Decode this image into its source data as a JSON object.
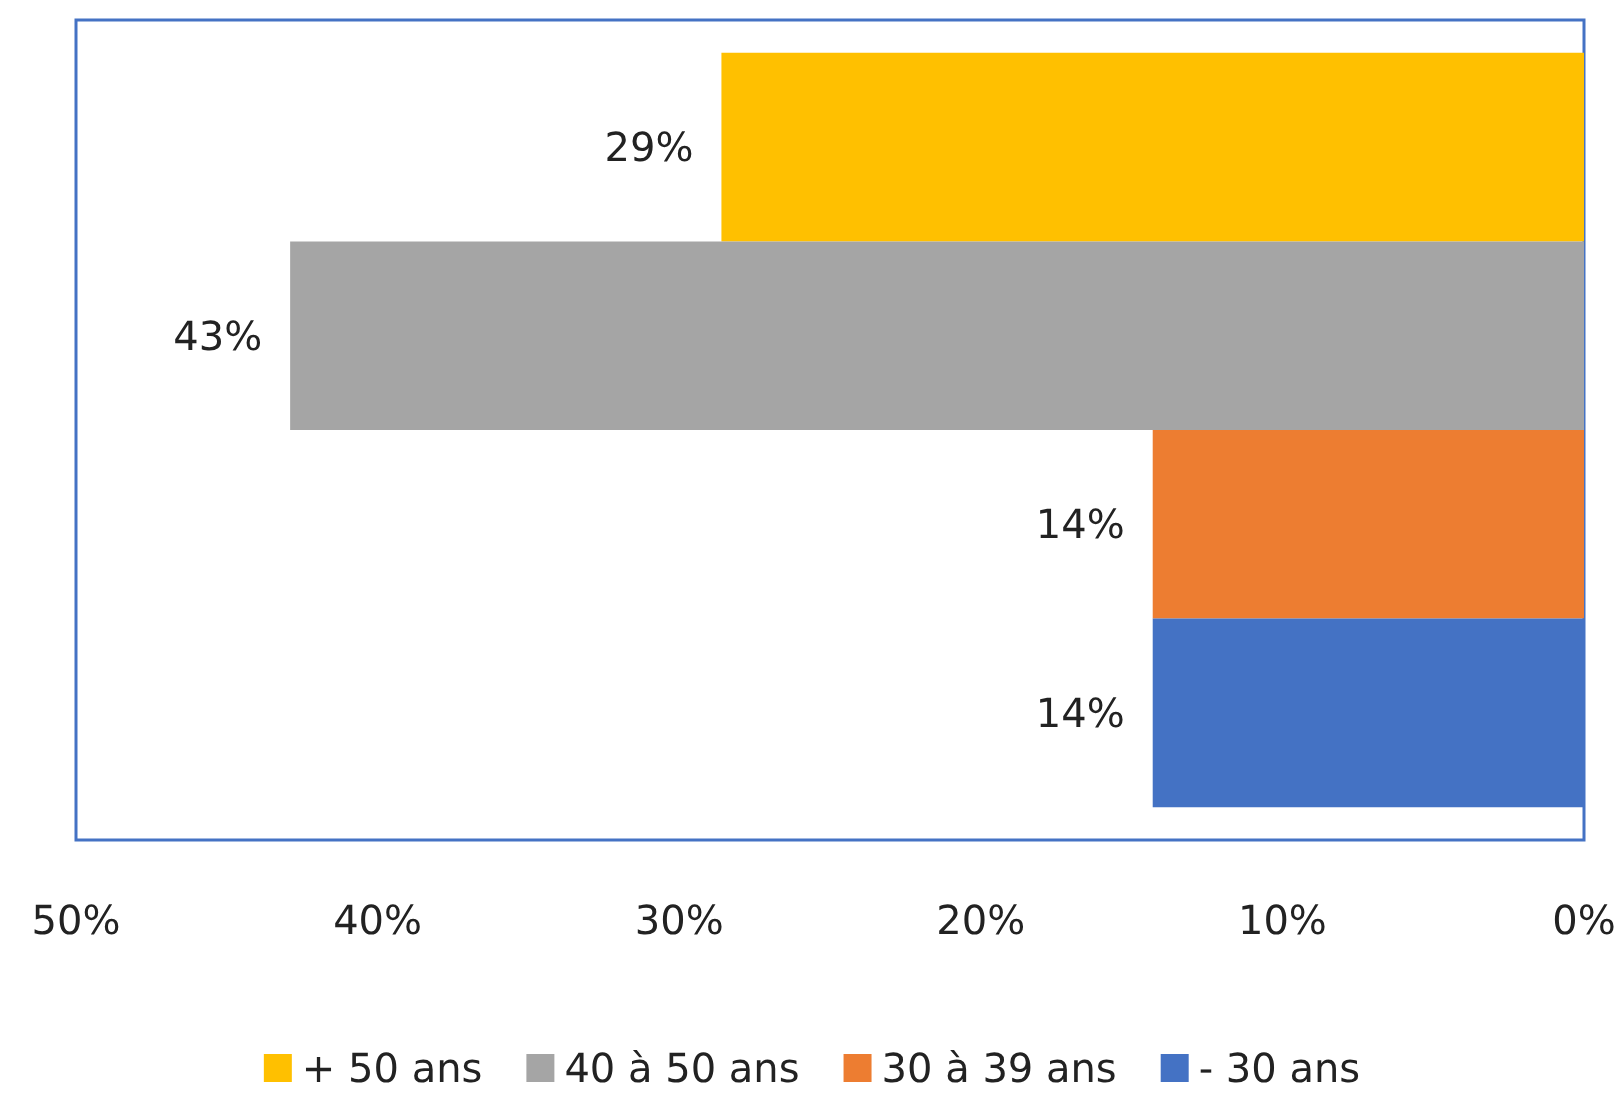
{
  "chart_data": {
    "type": "bar",
    "orientation": "horizontal",
    "categories": [
      null
    ],
    "series": [
      {
        "name": "+ 50 ans",
        "color": "#ffc000",
        "values": [
          28.6
        ],
        "value_labels": [
          "29%"
        ]
      },
      {
        "name": "40 à 50 ans",
        "color": "#a5a5a5",
        "values": [
          42.9
        ],
        "value_labels": [
          "43%"
        ]
      },
      {
        "name": "30 à 39 ans",
        "color": "#ed7d31",
        "values": [
          14.3
        ],
        "value_labels": [
          "14%"
        ]
      },
      {
        "name": "- 30 ans",
        "color": "#4472c4",
        "values": [
          14.3
        ],
        "value_labels": [
          "14%"
        ]
      }
    ],
    "xlim": [
      50,
      0
    ],
    "xticks": [
      {
        "value": 50,
        "label": "50%"
      },
      {
        "value": 40,
        "label": "40%"
      },
      {
        "value": 30,
        "label": "30%"
      },
      {
        "value": 20,
        "label": "20%"
      },
      {
        "value": 10,
        "label": "10%"
      },
      {
        "value": 0,
        "label": "0%"
      }
    ],
    "grid": false,
    "legend": "bottom"
  }
}
